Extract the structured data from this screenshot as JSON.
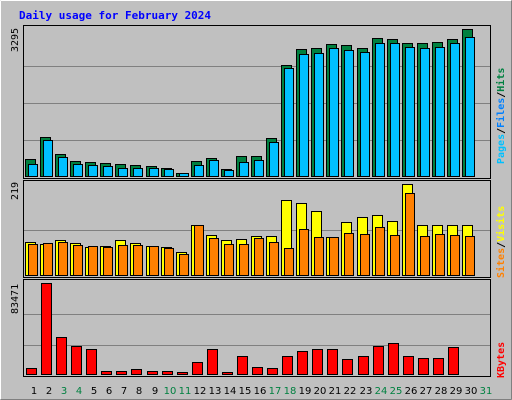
{
  "chart_data": {
    "type": "bar",
    "title": "Daily usage for February 2024",
    "days": [
      "1",
      "2",
      "3",
      "4",
      "5",
      "6",
      "7",
      "8",
      "9",
      "10",
      "11",
      "12",
      "13",
      "14",
      "15",
      "16",
      "17",
      "18",
      "19",
      "20",
      "21",
      "22",
      "23",
      "24",
      "25",
      "26",
      "27",
      "28",
      "29",
      "30",
      "31"
    ],
    "weekend_days": [
      "3",
      "4",
      "10",
      "11",
      "17",
      "18",
      "24",
      "25",
      "31"
    ],
    "colors": {
      "hits": "#008040",
      "files": "#00c0ff",
      "pages": "#00c0ff",
      "visits": "#ffff00",
      "sites": "#ff8000",
      "kbytes": "#ff0000",
      "weekday_label": "#000000",
      "weekend_label": "#008040",
      "title": "#0000ff"
    },
    "top_panel": {
      "max_label": "3295",
      "ymax": 3295,
      "legend": {
        "pages": "Pages",
        "sep1": "/",
        "files": "Files",
        "sep2": "/",
        "hits": "Hits"
      },
      "series": [
        {
          "key": "hits",
          "values": [
            400,
            900,
            520,
            350,
            340,
            320,
            300,
            270,
            240,
            200,
            100,
            360,
            420,
            180,
            460,
            470,
            870,
            2500,
            2860,
            2870,
            2950,
            2930,
            2880,
            3090,
            3080,
            2980,
            2990,
            3000,
            3080,
            3290
          ]
        },
        {
          "key": "files",
          "values": [
            300,
            820,
            450,
            300,
            260,
            250,
            200,
            210,
            190,
            170,
            80,
            260,
            370,
            150,
            340,
            370,
            770,
            2430,
            2740,
            2750,
            2870,
            2820,
            2790,
            2990,
            2980,
            2900,
            2880,
            2890,
            2980,
            3120
          ]
        }
      ]
    },
    "middle_panel": {
      "max_label": "219",
      "ymax": 219,
      "legend": {
        "sites": "Sites",
        "sep": "/",
        "visits": "Visits"
      },
      "series": [
        {
          "key": "visits",
          "values": [
            80,
            75,
            85,
            78,
            70,
            72,
            85,
            78,
            72,
            69,
            57,
            121,
            97,
            86,
            88,
            95,
            96,
            180,
            174,
            154,
            94,
            129,
            141,
            145,
            131,
            219,
            121,
            121,
            121,
            121
          ]
        },
        {
          "key": "sites",
          "values": [
            77,
            79,
            80,
            74,
            72,
            69,
            73,
            74,
            71,
            66,
            53,
            122,
            91,
            75,
            75,
            90,
            80,
            66,
            113,
            93,
            94,
            103,
            101,
            116,
            97,
            197,
            96,
            99,
            98,
            95
          ]
        }
      ]
    },
    "bottom_panel": {
      "max_label": "83471",
      "ymax": 83471,
      "legend": {
        "kbytes": "KBytes"
      },
      "series": [
        {
          "key": "kbytes",
          "values": [
            6000,
            83471,
            34500,
            26500,
            23500,
            3800,
            3500,
            5500,
            3500,
            3500,
            2500,
            12000,
            23500,
            2800,
            17000,
            7500,
            6500,
            17500,
            22000,
            23500,
            23500,
            14500,
            17500,
            26500,
            29000,
            17500,
            15000,
            15000,
            25500
          ]
        }
      ]
    }
  }
}
